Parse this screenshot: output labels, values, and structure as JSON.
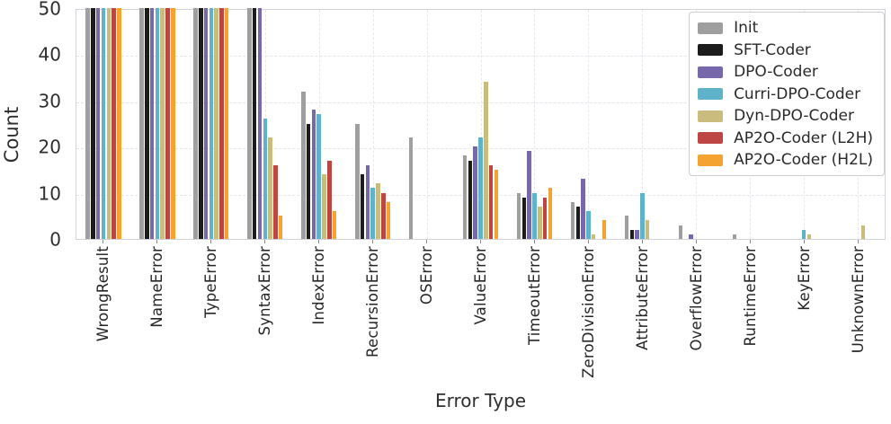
{
  "chart_data": {
    "type": "bar",
    "title": "",
    "xlabel": "Error Type",
    "ylabel": "Count",
    "ylim": [
      0,
      50
    ],
    "yticks": [
      0,
      10,
      20,
      30,
      40,
      50
    ],
    "grid": true,
    "legend_position": "upper right",
    "categories": [
      "WrongResult",
      "NameError",
      "TypeError",
      "SyntaxError",
      "IndexError",
      "RecursionError",
      "OSError",
      "ValueError",
      "TimeoutError",
      "ZeroDivisionError",
      "AttributeError",
      "OverflowError",
      "RuntimeError",
      "KeyError",
      "UnknownError"
    ],
    "series": [
      {
        "name": "Init",
        "color": "#9f9f9f",
        "values": [
          50,
          50,
          50,
          50,
          32,
          25,
          22,
          18,
          10,
          8,
          5,
          3,
          1,
          0,
          0
        ]
      },
      {
        "name": "SFT-Coder",
        "color": "#1c1c1c",
        "values": [
          50,
          50,
          50,
          50,
          25,
          14,
          0,
          17,
          9,
          7,
          2,
          0,
          0,
          0,
          0
        ]
      },
      {
        "name": "DPO-Coder",
        "color": "#7768ab",
        "values": [
          50,
          50,
          50,
          50,
          28,
          16,
          0,
          20,
          19,
          13,
          2,
          1,
          0,
          0,
          0
        ]
      },
      {
        "name": "Curri-DPO-Coder",
        "color": "#5eb2ca",
        "values": [
          50,
          50,
          50,
          26,
          27,
          11,
          0,
          22,
          10,
          6,
          10,
          0,
          0,
          2,
          0
        ]
      },
      {
        "name": "Dyn-DPO-Coder",
        "color": "#c9bc7d",
        "values": [
          50,
          50,
          50,
          22,
          14,
          12,
          0,
          34,
          7,
          1,
          4,
          0,
          0,
          1,
          3
        ]
      },
      {
        "name": "AP2O-Coder (L2H)",
        "color": "#bd4543",
        "values": [
          50,
          50,
          50,
          16,
          17,
          10,
          0,
          16,
          9,
          0,
          0,
          0,
          0,
          0,
          0
        ]
      },
      {
        "name": "AP2O-Coder (H2L)",
        "color": "#f4a230",
        "values": [
          50,
          50,
          50,
          5,
          6,
          8,
          0,
          15,
          11,
          4,
          0,
          0,
          0,
          0,
          0
        ]
      }
    ]
  }
}
